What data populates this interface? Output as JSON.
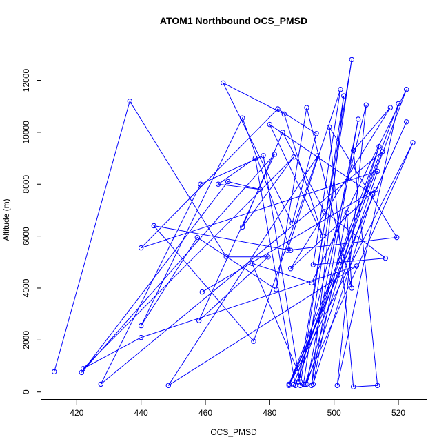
{
  "chart_data": {
    "type": "line",
    "title": "ATOM1 Northbound OCS_PMSD",
    "xlabel": "OCS_PMSD",
    "ylabel": "Altitude (m)",
    "xlim": [
      409,
      529
    ],
    "ylim": [
      -300,
      13500
    ],
    "xticks": [
      420,
      440,
      460,
      480,
      500,
      520
    ],
    "yticks": [
      0,
      2000,
      4000,
      6000,
      8000,
      10000,
      12000
    ],
    "grid": false,
    "color": "#0000ff",
    "marker": "open-circle",
    "series": [
      {
        "points": [
          [
            413.0,
            780
          ],
          [
            436.5,
            11200
          ],
          [
            466.5,
            5200
          ],
          [
            479.5,
            5200
          ],
          [
            458.0,
            2750
          ],
          [
            481.5,
            9150
          ],
          [
            421.5,
            750
          ],
          [
            467.0,
            8100
          ],
          [
            477.0,
            7800
          ],
          [
            464.0,
            8000
          ],
          [
            475.5,
            9000
          ],
          [
            488.0,
            250
          ],
          [
            522.5,
            11650
          ],
          [
            493.0,
            4200
          ],
          [
            474.5,
            4950
          ],
          [
            490.5,
            300
          ],
          [
            505.5,
            12800
          ],
          [
            489.0,
            400
          ],
          [
            510.0,
            11050
          ],
          [
            501.0,
            250
          ],
          [
            520.0,
            11100
          ],
          [
            487.5,
            300
          ],
          [
            514.0,
            9450
          ],
          [
            491.0,
            300
          ],
          [
            524.5,
            9600
          ],
          [
            486.0,
            250
          ],
          [
            522.5,
            10400
          ],
          [
            486.0,
            300
          ],
          [
            515.0,
            9250
          ],
          [
            427.5,
            300
          ],
          [
            458.5,
            8000
          ],
          [
            478.0,
            9100
          ],
          [
            489.5,
            250
          ],
          [
            503.0,
            11400
          ],
          [
            493.0,
            250
          ],
          [
            507.5,
            10500
          ],
          [
            491.5,
            300
          ],
          [
            513.5,
            8500
          ],
          [
            440.0,
            5550
          ],
          [
            482.5,
            10900
          ],
          [
            494.5,
            9950
          ],
          [
            487.0,
            6500
          ],
          [
            465.5,
            11900
          ],
          [
            484.5,
            10700
          ],
          [
            496.5,
            6000
          ],
          [
            480.0,
            10300
          ],
          [
            512.0,
            7600
          ],
          [
            493.5,
            300
          ],
          [
            504.0,
            6900
          ],
          [
            505.5,
            4000
          ],
          [
            491.5,
            10950
          ],
          [
            482.0,
            3950
          ],
          [
            457.5,
            5950
          ],
          [
            440.0,
            2550
          ],
          [
            471.5,
            10550
          ],
          [
            486.5,
            5450
          ],
          [
            444.0,
            6400
          ],
          [
            475.0,
            1950
          ],
          [
            495.0,
            9100
          ],
          [
            448.5,
            250
          ],
          [
            507.0,
            4850
          ],
          [
            440.0,
            2100
          ],
          [
            422.0,
            900
          ],
          [
            487.5,
            9050
          ],
          [
            471.5,
            6350
          ],
          [
            484.0,
            10000
          ],
          [
            497.0,
            6950
          ],
          [
            516.0,
            5150
          ],
          [
            493.5,
            4900
          ],
          [
            502.0,
            11650
          ],
          [
            485.5,
            5450
          ],
          [
            519.5,
            5950
          ],
          [
            498.5,
            10200
          ],
          [
            506.0,
            200
          ],
          [
            513.5,
            250
          ],
          [
            506.0,
            9300
          ],
          [
            517.5,
            10950
          ],
          [
            486.5,
            4750
          ],
          [
            513.0,
            7800
          ],
          [
            459.0,
            3850
          ]
        ]
      }
    ]
  }
}
